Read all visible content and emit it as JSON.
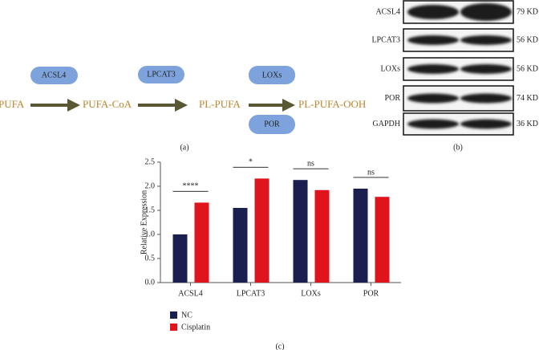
{
  "pathway": {
    "nodes": [
      "PUFA",
      "PUFA-CoA",
      "PL-PUFA",
      "PL-PUFA-OOH"
    ],
    "enzymes": [
      "ACSL4",
      "LPCAT3",
      "LOXs",
      "POR"
    ],
    "label": "(a)"
  },
  "blot": {
    "rows": [
      {
        "protein": "ACSL4",
        "size": "79 KD"
      },
      {
        "protein": "LPCAT3",
        "size": "56 KD"
      },
      {
        "protein": "LOXs",
        "size": "56 KD"
      },
      {
        "protein": "POR",
        "size": "74 KD"
      },
      {
        "protein": "GAPDH",
        "size": "36 KD"
      }
    ],
    "label": "(b)"
  },
  "chart_data": {
    "type": "bar",
    "ylabel": "Relative Expression",
    "categories": [
      "ACSL4",
      "LPCAT3",
      "LOXs",
      "POR"
    ],
    "series": [
      {
        "name": "NC",
        "color": "#1b1f4f",
        "values": [
          1.0,
          1.55,
          2.13,
          1.95
        ]
      },
      {
        "name": "Cisplatin",
        "color": "#e0141c",
        "values": [
          1.66,
          2.16,
          1.92,
          1.78
        ]
      }
    ],
    "ylim": [
      0,
      2.5
    ],
    "yticks": [
      {
        "value": 0,
        "label": "0.0"
      },
      0.5,
      {
        "value": 1,
        "label": "1.0"
      },
      1.5,
      {
        "value": 2,
        "label": "2.0"
      },
      2.5
    ],
    "annotations": [
      "****",
      "*",
      "ns",
      "ns"
    ],
    "legend": "bottom-left",
    "panel_label": "(c)"
  }
}
